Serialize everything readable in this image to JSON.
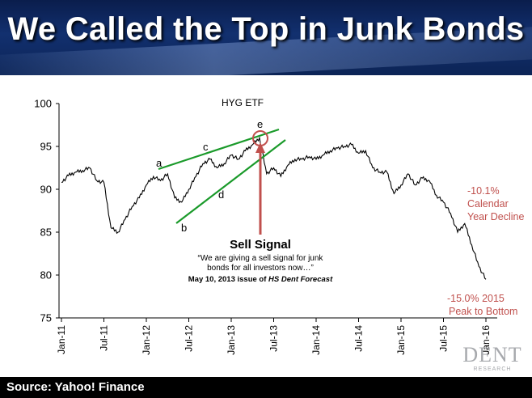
{
  "header": {
    "title": "We Called the Top in Junk Bonds"
  },
  "footer": {
    "source": "Source: Yahoo! Finance"
  },
  "logo": {
    "text": "DENT",
    "subtext": "RESEARCH"
  },
  "colors": {
    "line": "#000000",
    "trend": "#1a9a2a",
    "signal": "#c0504d",
    "banner": "#0f2b66"
  },
  "chart_data": {
    "type": "line",
    "title": "HYG ETF",
    "xlabel": "",
    "ylabel": "",
    "x_ticks": [
      "Jan-11",
      "Jul-11",
      "Jan-12",
      "Jul-12",
      "Jan-13",
      "Jul-13",
      "Jan-14",
      "Jul-14",
      "Jan-15",
      "Jul-15",
      "Jan-16"
    ],
    "y_ticks": [
      "75",
      "80",
      "85",
      "90",
      "95",
      "100"
    ],
    "ylim": [
      75,
      100
    ],
    "grid": false,
    "series": [
      {
        "x": [
          "2011-01",
          "2011-02",
          "2011-03",
          "2011-04",
          "2011-05",
          "2011-06",
          "2011-07",
          "2011-08",
          "2011-09",
          "2011-10",
          "2011-11",
          "2011-12",
          "2012-01",
          "2012-02",
          "2012-03",
          "2012-04",
          "2012-05",
          "2012-06",
          "2012-07",
          "2012-08",
          "2012-09",
          "2012-10",
          "2012-11",
          "2012-12",
          "2013-01",
          "2013-02",
          "2013-03",
          "2013-04",
          "2013-05",
          "2013-06",
          "2013-07",
          "2013-08",
          "2013-09",
          "2013-10",
          "2013-11",
          "2013-12",
          "2014-01",
          "2014-02",
          "2014-03",
          "2014-04",
          "2014-05",
          "2014-06",
          "2014-07",
          "2014-08",
          "2014-09",
          "2014-10",
          "2014-11",
          "2014-12",
          "2015-01",
          "2015-02",
          "2015-03",
          "2015-04",
          "2015-05",
          "2015-06",
          "2015-07",
          "2015-08",
          "2015-09",
          "2015-10",
          "2015-11",
          "2015-12",
          "2016-01"
        ],
        "values": [
          90.8,
          91.6,
          92.0,
          92.2,
          92.5,
          91.0,
          90.8,
          85.5,
          85.0,
          86.5,
          88.0,
          89.0,
          90.5,
          91.5,
          91.0,
          91.8,
          89.0,
          88.5,
          90.0,
          91.5,
          93.0,
          93.5,
          92.5,
          93.0,
          94.0,
          93.5,
          94.5,
          95.2,
          96.0,
          91.8,
          92.5,
          91.5,
          92.8,
          93.5,
          93.5,
          93.8,
          93.5,
          94.0,
          94.5,
          94.8,
          95.0,
          95.2,
          94.2,
          94.5,
          92.5,
          92.0,
          92.0,
          89.5,
          90.5,
          91.8,
          90.5,
          91.3,
          91.0,
          89.3,
          88.5,
          87.2,
          85.0,
          86.0,
          83.5,
          81.0,
          79.5
        ]
      }
    ],
    "annotations": {
      "points": [
        "a",
        "b",
        "c",
        "d",
        "e"
      ],
      "sell_signal": "Sell Signal",
      "quote1": "“We are giving a  sell signal for junk",
      "quote2": "bonds for all investors now…”",
      "source_prefix": "May 10, 2013 issue of ",
      "source_italic": "HS Dent Forecast",
      "decline1_l1": "-10.1%",
      "decline1_l2": "Calendar",
      "decline1_l3": "Year Decline",
      "decline2_l1": "-15.0% 2015",
      "decline2_l2": "Peak to Bottom"
    }
  }
}
